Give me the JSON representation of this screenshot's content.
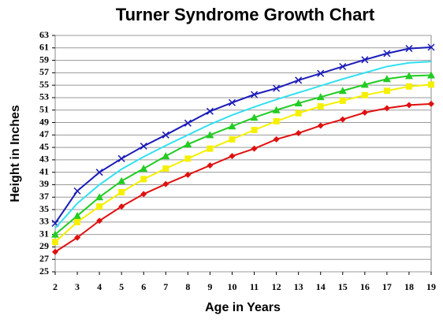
{
  "chart_data": {
    "type": "line",
    "title": "Turner Syndrome Growth Chart",
    "x_label": "Age in Years",
    "y_label": "Height in Inches",
    "x": [
      2,
      3,
      4,
      5,
      6,
      7,
      8,
      9,
      10,
      11,
      12,
      13,
      14,
      15,
      16,
      17,
      18,
      19
    ],
    "xlim": [
      2,
      19
    ],
    "xticks": [
      2,
      3,
      4,
      5,
      6,
      7,
      8,
      9,
      10,
      11,
      12,
      13,
      14,
      15,
      16,
      17,
      18,
      19
    ],
    "ylim": [
      25,
      63
    ],
    "yticks": [
      25,
      27,
      29,
      31,
      33,
      35,
      37,
      39,
      41,
      43,
      45,
      47,
      49,
      51,
      53,
      55,
      57,
      59,
      61,
      63
    ],
    "grid": true,
    "series": [
      {
        "color": "#1a1ab8",
        "marker": "x",
        "values": [
          32.8,
          38,
          41,
          43.2,
          45.2,
          47,
          48.9,
          50.8,
          52.2,
          53.5,
          54.5,
          55.8,
          56.9,
          58,
          59.1,
          60.1,
          60.9,
          61.1
        ]
      },
      {
        "color": "#33e0f0",
        "marker": "none",
        "values": [
          32,
          36,
          39,
          41.5,
          43.5,
          45.3,
          47,
          48.7,
          50.2,
          51.5,
          52.7,
          53.8,
          54.9,
          56,
          57,
          58,
          58.6,
          58.8
        ]
      },
      {
        "color": "#22cc22",
        "marker": "triangle",
        "values": [
          31,
          34,
          37,
          39.6,
          41.6,
          43.6,
          45.5,
          47,
          48.4,
          49.8,
          51,
          52.1,
          53.1,
          54.1,
          55.1,
          56,
          56.5,
          56.6
        ]
      },
      {
        "color": "#f5f000",
        "marker": "square",
        "values": [
          29.8,
          33,
          35.5,
          37.8,
          39.9,
          41.6,
          43.2,
          44.8,
          46.3,
          47.8,
          49.2,
          50.5,
          51.6,
          52.5,
          53.4,
          54.1,
          54.8,
          55.1
        ]
      },
      {
        "color": "#e01010",
        "marker": "diamond",
        "values": [
          28.2,
          30.5,
          33.2,
          35.5,
          37.5,
          39.1,
          40.6,
          42.1,
          43.6,
          44.8,
          46.3,
          47.3,
          48.5,
          49.5,
          50.6,
          51.3,
          51.8,
          52
        ]
      }
    ]
  }
}
